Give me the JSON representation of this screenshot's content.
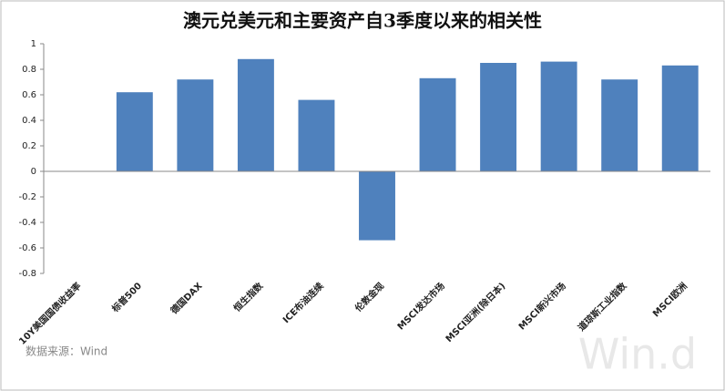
{
  "chart_data": {
    "type": "bar",
    "title": "澳元兑美元和主要资产自3季度以来的相关性",
    "categories": [
      "10Y美国国债收益率",
      "标普500",
      "德国DAX",
      "恒生指数",
      "ICE布油连续",
      "伦敦金现",
      "MSCI发达市场",
      "MSCI亚洲(除日本)",
      "MSCI新兴市场",
      "道琼斯工业指数",
      "MSCI欧洲"
    ],
    "values": [
      0,
      0.62,
      0.72,
      0.88,
      0.56,
      -0.54,
      0.73,
      0.85,
      0.86,
      0.72,
      0.83
    ],
    "color": "#4f81bd",
    "ylim": [
      -0.8,
      1
    ],
    "yticks": [
      -0.8,
      -0.6,
      -0.4,
      -0.2,
      0,
      0.2,
      0.4,
      0.6,
      0.8,
      1
    ],
    "grid": false,
    "source": "数据来源：Wind",
    "watermark": "Win.d"
  }
}
